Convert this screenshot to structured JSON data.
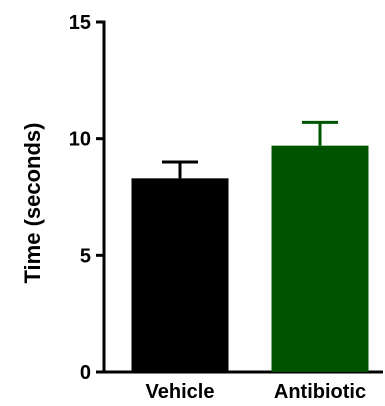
{
  "chart_data": {
    "type": "bar",
    "title": "",
    "xlabel": "",
    "ylabel": "Time (seconds)",
    "ylim": [
      0,
      15
    ],
    "yticks": [
      0,
      5,
      10,
      15
    ],
    "grid": false,
    "legend": "none",
    "categories": [
      "Vehicle",
      "Antibiotic"
    ],
    "values": [
      8.3,
      9.7
    ],
    "error_upper": [
      0.7,
      1.0
    ],
    "colors": [
      "#000000",
      "#005400"
    ]
  }
}
